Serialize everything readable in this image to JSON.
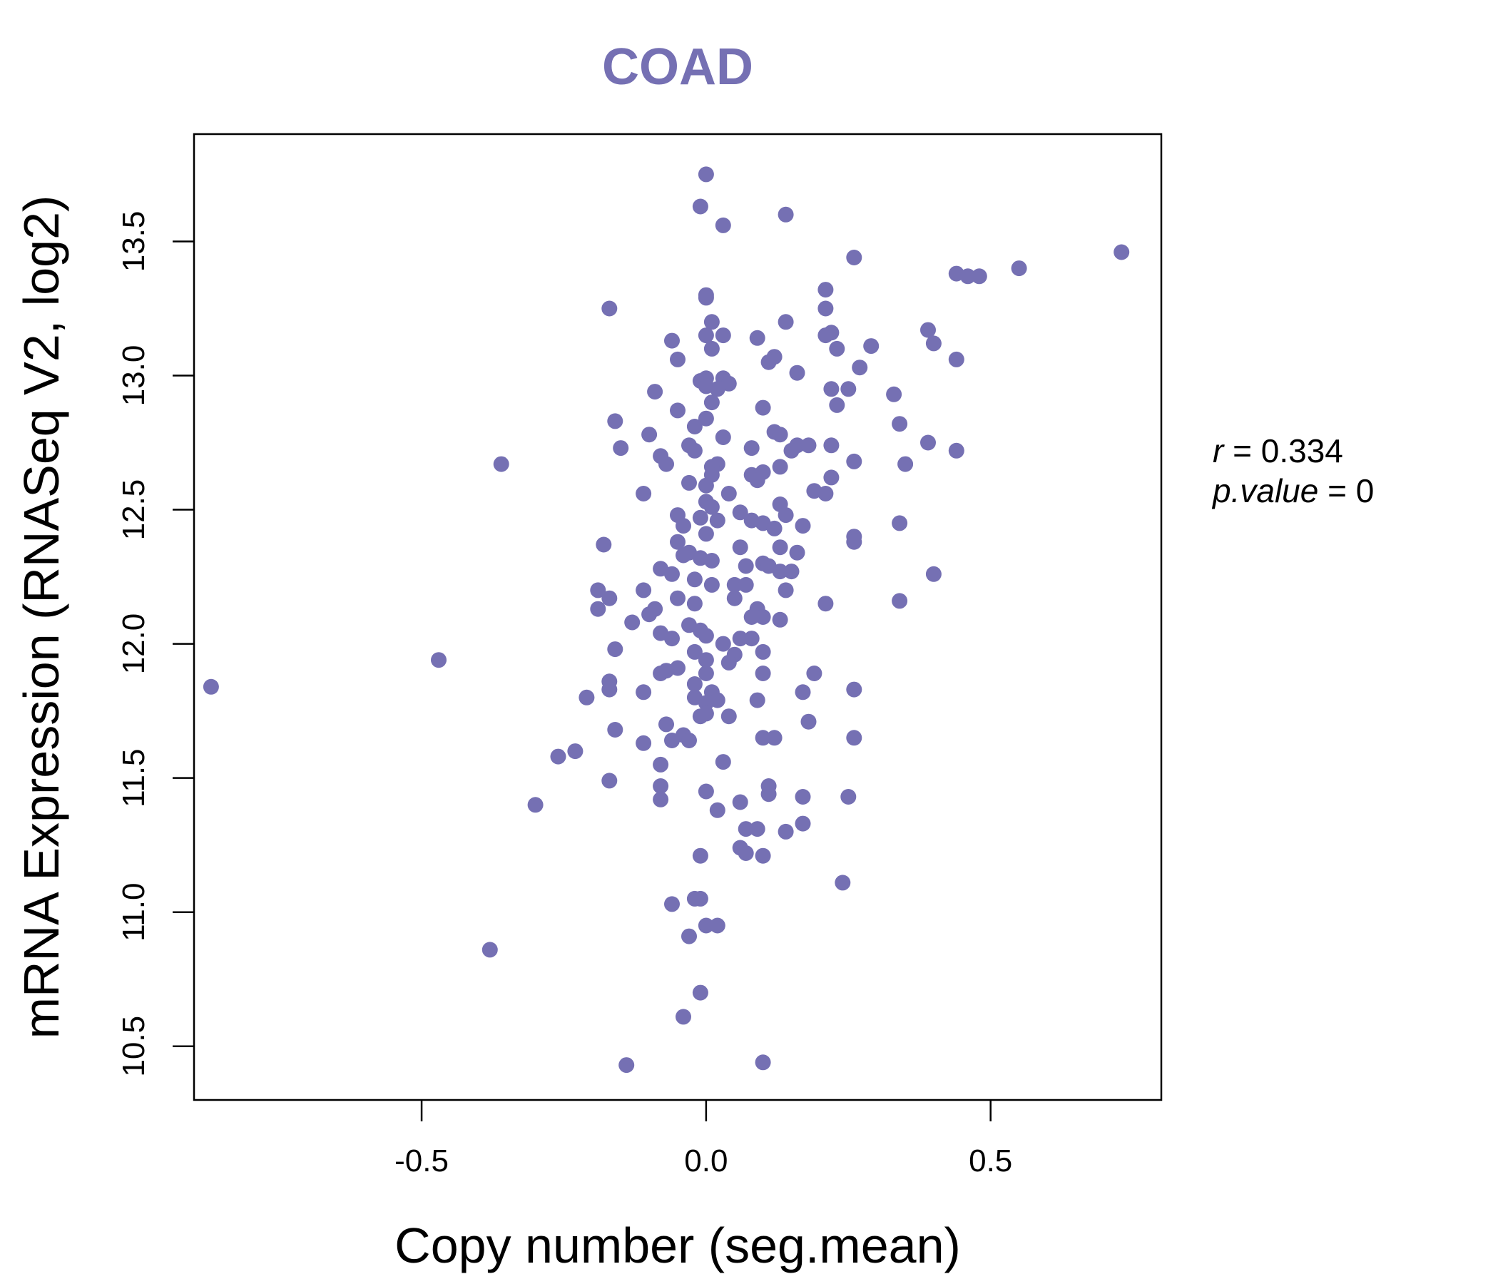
{
  "chart_data": {
    "type": "scatter",
    "title": "COAD",
    "xlabel": "Copy number (seg.mean)",
    "ylabel": "mRNA Expression (RNASeq V2, log2)",
    "xlim": [
      -0.9,
      0.8
    ],
    "ylim": [
      10.3,
      13.9
    ],
    "x_ticks": [
      -0.5,
      0.0,
      0.5
    ],
    "x_tick_labels": [
      "-0.5",
      "0.0",
      "0.5"
    ],
    "y_ticks": [
      10.5,
      11.0,
      11.5,
      12.0,
      12.5,
      13.0,
      13.5
    ],
    "y_tick_labels": [
      "10.5",
      "11.0",
      "11.5",
      "12.0",
      "12.5",
      "13.0",
      "13.5"
    ],
    "grid": false,
    "point_color": "#7570b3",
    "annotations": {
      "r_label": "r",
      "r_value": "0.334",
      "p_label": "p.value",
      "p_value": "0"
    },
    "points": [
      [
        0.0,
        13.75
      ],
      [
        -0.01,
        13.63
      ],
      [
        0.03,
        13.56
      ],
      [
        0.14,
        13.6
      ],
      [
        0.26,
        13.44
      ],
      [
        0.73,
        13.46
      ],
      [
        0.55,
        13.4
      ],
      [
        0.44,
        13.38
      ],
      [
        0.46,
        13.37
      ],
      [
        0.48,
        13.37
      ],
      [
        0.21,
        13.32
      ],
      [
        0.0,
        13.29
      ],
      [
        0.0,
        13.3
      ],
      [
        -0.17,
        13.25
      ],
      [
        0.21,
        13.25
      ],
      [
        0.01,
        13.2
      ],
      [
        0.14,
        13.2
      ],
      [
        0.39,
        13.17
      ],
      [
        0.22,
        13.16
      ],
      [
        0.21,
        13.15
      ],
      [
        0.0,
        13.15
      ],
      [
        0.03,
        13.15
      ],
      [
        0.09,
        13.14
      ],
      [
        -0.06,
        13.13
      ],
      [
        0.4,
        13.12
      ],
      [
        0.29,
        13.11
      ],
      [
        0.01,
        13.1
      ],
      [
        0.23,
        13.1
      ],
      [
        0.12,
        13.07
      ],
      [
        -0.05,
        13.06
      ],
      [
        0.11,
        13.05
      ],
      [
        0.44,
        13.06
      ],
      [
        0.27,
        13.03
      ],
      [
        0.16,
        13.01
      ],
      [
        0.0,
        12.99
      ],
      [
        0.03,
        12.99
      ],
      [
        -0.01,
        12.98
      ],
      [
        0.04,
        12.97
      ],
      [
        0.0,
        12.96
      ],
      [
        -0.09,
        12.94
      ],
      [
        0.02,
        12.95
      ],
      [
        0.22,
        12.95
      ],
      [
        0.25,
        12.95
      ],
      [
        0.33,
        12.93
      ],
      [
        0.01,
        12.9
      ],
      [
        -0.05,
        12.87
      ],
      [
        0.1,
        12.88
      ],
      [
        0.23,
        12.89
      ],
      [
        -0.16,
        12.83
      ],
      [
        0.0,
        12.84
      ],
      [
        -0.02,
        12.81
      ],
      [
        0.34,
        12.82
      ],
      [
        -0.1,
        12.78
      ],
      [
        0.12,
        12.79
      ],
      [
        0.13,
        12.78
      ],
      [
        0.03,
        12.77
      ],
      [
        0.16,
        12.74
      ],
      [
        0.18,
        12.74
      ],
      [
        0.22,
        12.74
      ],
      [
        0.39,
        12.75
      ],
      [
        0.44,
        12.72
      ],
      [
        -0.15,
        12.73
      ],
      [
        -0.03,
        12.74
      ],
      [
        -0.02,
        12.72
      ],
      [
        0.08,
        12.73
      ],
      [
        0.15,
        12.72
      ],
      [
        -0.08,
        12.7
      ],
      [
        -0.07,
        12.67
      ],
      [
        0.02,
        12.67
      ],
      [
        0.01,
        12.66
      ],
      [
        0.13,
        12.66
      ],
      [
        0.26,
        12.68
      ],
      [
        0.35,
        12.67
      ],
      [
        -0.36,
        12.67
      ],
      [
        0.08,
        12.63
      ],
      [
        0.1,
        12.64
      ],
      [
        0.09,
        12.61
      ],
      [
        0.01,
        12.63
      ],
      [
        0.22,
        12.62
      ],
      [
        -0.03,
        12.6
      ],
      [
        0.0,
        12.59
      ],
      [
        0.19,
        12.57
      ],
      [
        0.21,
        12.56
      ],
      [
        0.04,
        12.56
      ],
      [
        -0.11,
        12.56
      ],
      [
        0.0,
        12.53
      ],
      [
        0.13,
        12.52
      ],
      [
        0.01,
        12.51
      ],
      [
        -0.05,
        12.48
      ],
      [
        0.06,
        12.49
      ],
      [
        0.14,
        12.48
      ],
      [
        0.08,
        12.46
      ],
      [
        0.1,
        12.45
      ],
      [
        -0.01,
        12.47
      ],
      [
        0.02,
        12.46
      ],
      [
        0.34,
        12.45
      ],
      [
        0.17,
        12.44
      ],
      [
        0.12,
        12.43
      ],
      [
        0.0,
        12.41
      ],
      [
        -0.04,
        12.44
      ],
      [
        0.26,
        12.4
      ],
      [
        0.26,
        12.38
      ],
      [
        -0.05,
        12.38
      ],
      [
        -0.18,
        12.37
      ],
      [
        0.06,
        12.36
      ],
      [
        0.13,
        12.36
      ],
      [
        0.16,
        12.34
      ],
      [
        -0.03,
        12.34
      ],
      [
        -0.04,
        12.33
      ],
      [
        -0.01,
        12.32
      ],
      [
        0.01,
        12.31
      ],
      [
        0.1,
        12.3
      ],
      [
        0.07,
        12.29
      ],
      [
        0.11,
        12.29
      ],
      [
        0.13,
        12.27
      ],
      [
        0.15,
        12.27
      ],
      [
        -0.08,
        12.28
      ],
      [
        -0.06,
        12.26
      ],
      [
        0.4,
        12.26
      ],
      [
        -0.02,
        12.24
      ],
      [
        0.01,
        12.22
      ],
      [
        0.05,
        12.22
      ],
      [
        0.07,
        12.22
      ],
      [
        0.14,
        12.2
      ],
      [
        -0.11,
        12.2
      ],
      [
        -0.19,
        12.2
      ],
      [
        -0.17,
        12.17
      ],
      [
        -0.05,
        12.17
      ],
      [
        0.05,
        12.17
      ],
      [
        0.21,
        12.15
      ],
      [
        0.34,
        12.16
      ],
      [
        -0.02,
        12.15
      ],
      [
        -0.09,
        12.13
      ],
      [
        -0.19,
        12.13
      ],
      [
        -0.1,
        12.11
      ],
      [
        0.09,
        12.13
      ],
      [
        0.1,
        12.1
      ],
      [
        0.13,
        12.09
      ],
      [
        0.08,
        12.1
      ],
      [
        -0.13,
        12.08
      ],
      [
        -0.03,
        12.07
      ],
      [
        -0.01,
        12.05
      ],
      [
        0.0,
        12.03
      ],
      [
        -0.08,
        12.04
      ],
      [
        0.06,
        12.02
      ],
      [
        0.08,
        12.02
      ],
      [
        -0.06,
        12.02
      ],
      [
        0.03,
        12.0
      ],
      [
        -0.16,
        11.98
      ],
      [
        0.1,
        11.97
      ],
      [
        0.05,
        11.96
      ],
      [
        -0.02,
        11.97
      ],
      [
        0.0,
        11.94
      ],
      [
        0.04,
        11.93
      ],
      [
        -0.47,
        11.94
      ],
      [
        -0.05,
        11.91
      ],
      [
        -0.07,
        11.9
      ],
      [
        0.19,
        11.89
      ],
      [
        -0.08,
        11.89
      ],
      [
        0.1,
        11.89
      ],
      [
        0.0,
        11.89
      ],
      [
        -0.17,
        11.86
      ],
      [
        -0.02,
        11.85
      ],
      [
        0.26,
        11.83
      ],
      [
        -0.17,
        11.83
      ],
      [
        -0.87,
        11.84
      ],
      [
        0.01,
        11.82
      ],
      [
        0.17,
        11.82
      ],
      [
        -0.11,
        11.82
      ],
      [
        -0.21,
        11.8
      ],
      [
        -0.02,
        11.8
      ],
      [
        0.02,
        11.79
      ],
      [
        0.09,
        11.79
      ],
      [
        0.0,
        11.78
      ],
      [
        0.0,
        11.74
      ],
      [
        0.04,
        11.73
      ],
      [
        -0.01,
        11.73
      ],
      [
        0.18,
        11.71
      ],
      [
        -0.07,
        11.7
      ],
      [
        -0.16,
        11.68
      ],
      [
        -0.04,
        11.66
      ],
      [
        0.1,
        11.65
      ],
      [
        0.12,
        11.65
      ],
      [
        0.26,
        11.65
      ],
      [
        -0.03,
        11.64
      ],
      [
        -0.06,
        11.64
      ],
      [
        -0.11,
        11.63
      ],
      [
        -0.23,
        11.6
      ],
      [
        -0.26,
        11.58
      ],
      [
        0.03,
        11.56
      ],
      [
        -0.08,
        11.55
      ],
      [
        -0.17,
        11.49
      ],
      [
        0.11,
        11.47
      ],
      [
        -0.08,
        11.47
      ],
      [
        0.11,
        11.44
      ],
      [
        0.0,
        11.45
      ],
      [
        0.17,
        11.43
      ],
      [
        0.25,
        11.43
      ],
      [
        -0.08,
        11.42
      ],
      [
        0.06,
        11.41
      ],
      [
        -0.3,
        11.4
      ],
      [
        0.02,
        11.38
      ],
      [
        0.17,
        11.33
      ],
      [
        0.07,
        11.31
      ],
      [
        0.09,
        11.31
      ],
      [
        0.14,
        11.3
      ],
      [
        0.06,
        11.24
      ],
      [
        0.07,
        11.22
      ],
      [
        0.1,
        11.21
      ],
      [
        -0.01,
        11.21
      ],
      [
        0.24,
        11.11
      ],
      [
        -0.02,
        11.05
      ],
      [
        -0.01,
        11.05
      ],
      [
        -0.06,
        11.03
      ],
      [
        0.0,
        10.95
      ],
      [
        0.02,
        10.95
      ],
      [
        -0.03,
        10.91
      ],
      [
        -0.38,
        10.86
      ],
      [
        -0.01,
        10.7
      ],
      [
        -0.04,
        10.61
      ],
      [
        0.1,
        10.44
      ],
      [
        -0.14,
        10.43
      ]
    ]
  }
}
